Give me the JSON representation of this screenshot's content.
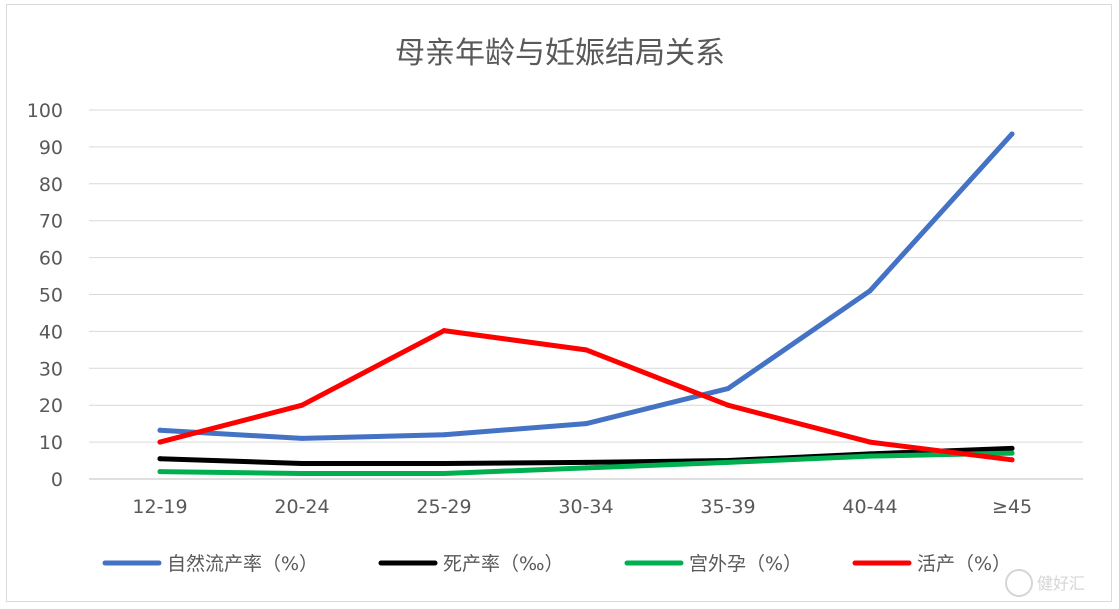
{
  "chart_data": {
    "type": "line",
    "title": "母亲年龄与妊娠结局关系",
    "categories": [
      "12-19",
      "20-24",
      "25-29",
      "30-34",
      "35-39",
      "40-44",
      "≥45"
    ],
    "ylim": [
      0,
      100
    ],
    "yticks": [
      0,
      10,
      20,
      30,
      40,
      50,
      60,
      70,
      80,
      90,
      100
    ],
    "grid": true,
    "legend_position": "bottom",
    "series": [
      {
        "name": "自然流产率（%）",
        "color": "#4472c4",
        "values": [
          13.2,
          11,
          12,
          15,
          24.5,
          51,
          93.5
        ]
      },
      {
        "name": "死产率（‰）",
        "color": "#000000",
        "values": [
          5.5,
          4.2,
          4.2,
          4.5,
          5,
          6.8,
          8.3
        ]
      },
      {
        "name": "宫外孕（%）",
        "color": "#00b050",
        "values": [
          2,
          1.5,
          1.5,
          3,
          4.5,
          6.2,
          7
        ]
      },
      {
        "name": "活产（%）",
        "color": "#ff0000",
        "values": [
          10,
          20,
          40.2,
          35,
          20,
          10,
          5.2
        ]
      }
    ]
  },
  "watermark": {
    "text": "健好汇"
  }
}
